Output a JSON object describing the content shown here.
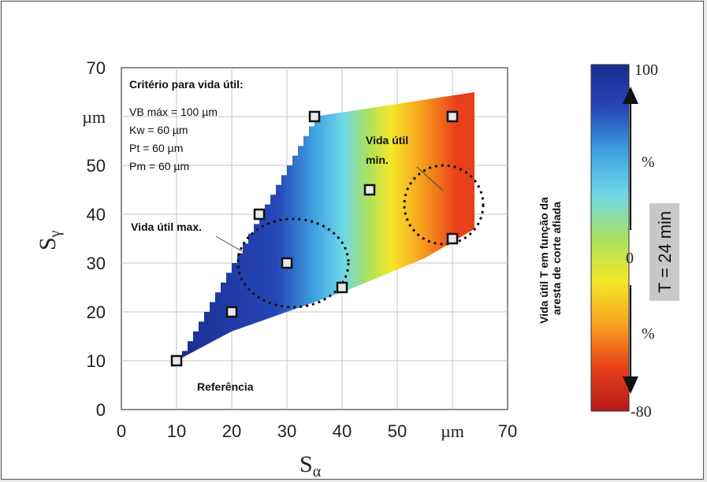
{
  "chart_data": {
    "type": "heatmap",
    "xlabel": "S",
    "xlabel_sub": "α",
    "ylabel": "S",
    "ylabel_sub": "γ",
    "x_unit": "µm",
    "y_unit": "µm",
    "xlim": [
      0,
      70
    ],
    "ylim": [
      0,
      70
    ],
    "x_ticks": [
      "0",
      "10",
      "20",
      "30",
      "40",
      "50",
      "µm",
      "70"
    ],
    "y_ticks": [
      "0",
      "10",
      "20",
      "30",
      "40",
      "50",
      "µm",
      "70"
    ],
    "grid": true,
    "points": [
      {
        "x": 10,
        "y": 10
      },
      {
        "x": 20,
        "y": 20
      },
      {
        "x": 25,
        "y": 40
      },
      {
        "x": 30,
        "y": 30
      },
      {
        "x": 35,
        "y": 60
      },
      {
        "x": 40,
        "y": 25
      },
      {
        "x": 45,
        "y": 45
      },
      {
        "x": 60,
        "y": 60
      },
      {
        "x": 60,
        "y": 35
      }
    ],
    "criteria": {
      "title": "Critério para vida útil:",
      "lines": [
        "VB máx = 100 µm",
        "Kw = 60 µm",
        "Pt = 60 µm",
        "Pm = 60 µm"
      ]
    },
    "annotations": {
      "max": "Vida útil max.",
      "min_line1": "Vida útil",
      "min_line2": "min.",
      "reference": "Referência"
    },
    "colorbar": {
      "max": "100",
      "zero": "0",
      "min": "-80",
      "unit_top": "%",
      "unit_bottom": "%",
      "title_line1": "Vida útil T em função da",
      "title_line2": "aresta de corte afiada",
      "reference_label": "T = 24 min",
      "colors": [
        "#1a2d8f",
        "#2547b8",
        "#3fa0e0",
        "#6ed8e8",
        "#a8e060",
        "#f4e82a",
        "#f7a21e",
        "#e8401a",
        "#b51a1a"
      ]
    }
  }
}
